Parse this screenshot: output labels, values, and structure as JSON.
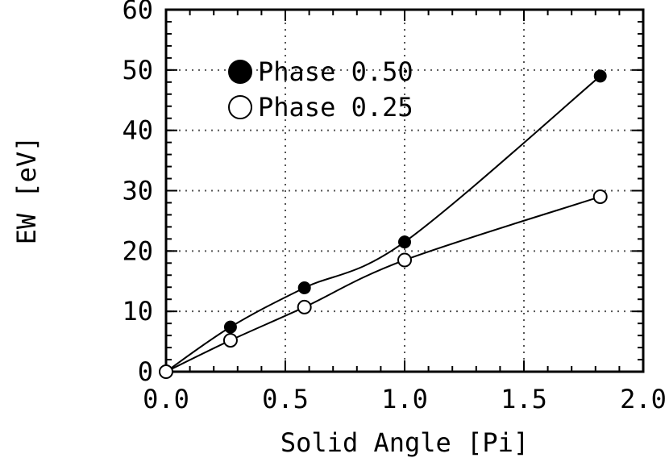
{
  "chart_data": {
    "type": "line",
    "xlabel": "Solid Angle [Pi]",
    "ylabel": "EW [eV]",
    "xlim": [
      0.0,
      2.0
    ],
    "ylim": [
      0,
      60
    ],
    "xticks": [
      "0.0",
      "0.5",
      "1.0",
      "1.5",
      "2.0"
    ],
    "yticks": [
      "0",
      "10",
      "20",
      "30",
      "40",
      "50",
      "60"
    ],
    "grid": true,
    "legend_position": "top-left",
    "series": [
      {
        "name": "Phase 0.50",
        "marker": "filled-circle",
        "color": "#000000",
        "points": [
          {
            "x": 0.0,
            "y": 0.0
          },
          {
            "x": 0.27,
            "y": 7.4
          },
          {
            "x": 0.58,
            "y": 13.9
          },
          {
            "x": 1.0,
            "y": 21.5
          },
          {
            "x": 1.82,
            "y": 49.0
          }
        ]
      },
      {
        "name": "Phase 0.25",
        "marker": "open-circle",
        "color": "#000000",
        "points": [
          {
            "x": 0.0,
            "y": 0.0
          },
          {
            "x": 0.27,
            "y": 5.2
          },
          {
            "x": 0.58,
            "y": 10.7
          },
          {
            "x": 1.0,
            "y": 18.5
          },
          {
            "x": 1.82,
            "y": 29.0
          }
        ]
      }
    ]
  }
}
